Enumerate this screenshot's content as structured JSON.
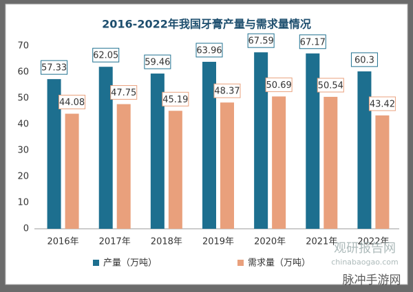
{
  "chart_data": {
    "type": "bar",
    "title": "2016-2022年我国牙膏产量与需求量情况",
    "categories": [
      "2016年",
      "2017年",
      "2018年",
      "2019年",
      "2020年",
      "2021年",
      "2022年"
    ],
    "series": [
      {
        "name": "产量（万吨）",
        "color": "#1d6f8f",
        "values": [
          57.33,
          62.05,
          59.46,
          63.96,
          67.59,
          67.17,
          60.3
        ]
      },
      {
        "name": "需求量（万吨）",
        "color": "#e9a07c",
        "values": [
          44.08,
          47.75,
          45.19,
          48.37,
          50.69,
          50.54,
          43.42
        ]
      }
    ],
    "ylim": [
      0,
      70
    ],
    "yticks": [
      0,
      10,
      20,
      30,
      40,
      50,
      60,
      70
    ],
    "grid": false,
    "legend": "bottom",
    "watermarks": [
      "观研报告网",
      "chinabaogao.com",
      "脉冲手游网"
    ]
  }
}
